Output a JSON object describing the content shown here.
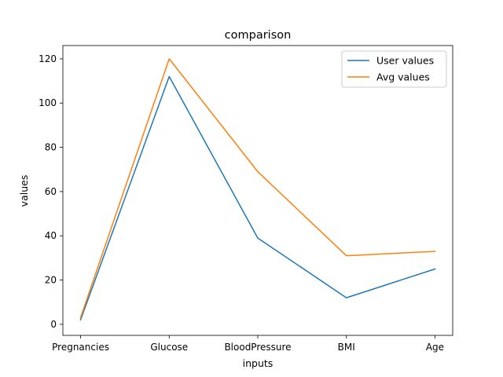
{
  "chart_data": {
    "type": "line",
    "title": "comparison",
    "xlabel": "inputs",
    "ylabel": "values",
    "categories": [
      "Pregnancies",
      "Glucose",
      "BloodPressure",
      "BMI",
      "Age"
    ],
    "ylim": [
      -5,
      126
    ],
    "yticks": [
      0,
      20,
      40,
      60,
      80,
      100,
      120
    ],
    "grid": false,
    "legend_position": "top-right",
    "series": [
      {
        "name": "User values",
        "color": "#1f77b4",
        "values": [
          2,
          112,
          39,
          12,
          25
        ]
      },
      {
        "name": "Avg values",
        "color": "#ff7f0e",
        "values": [
          3,
          120,
          69,
          31,
          33
        ]
      }
    ]
  }
}
